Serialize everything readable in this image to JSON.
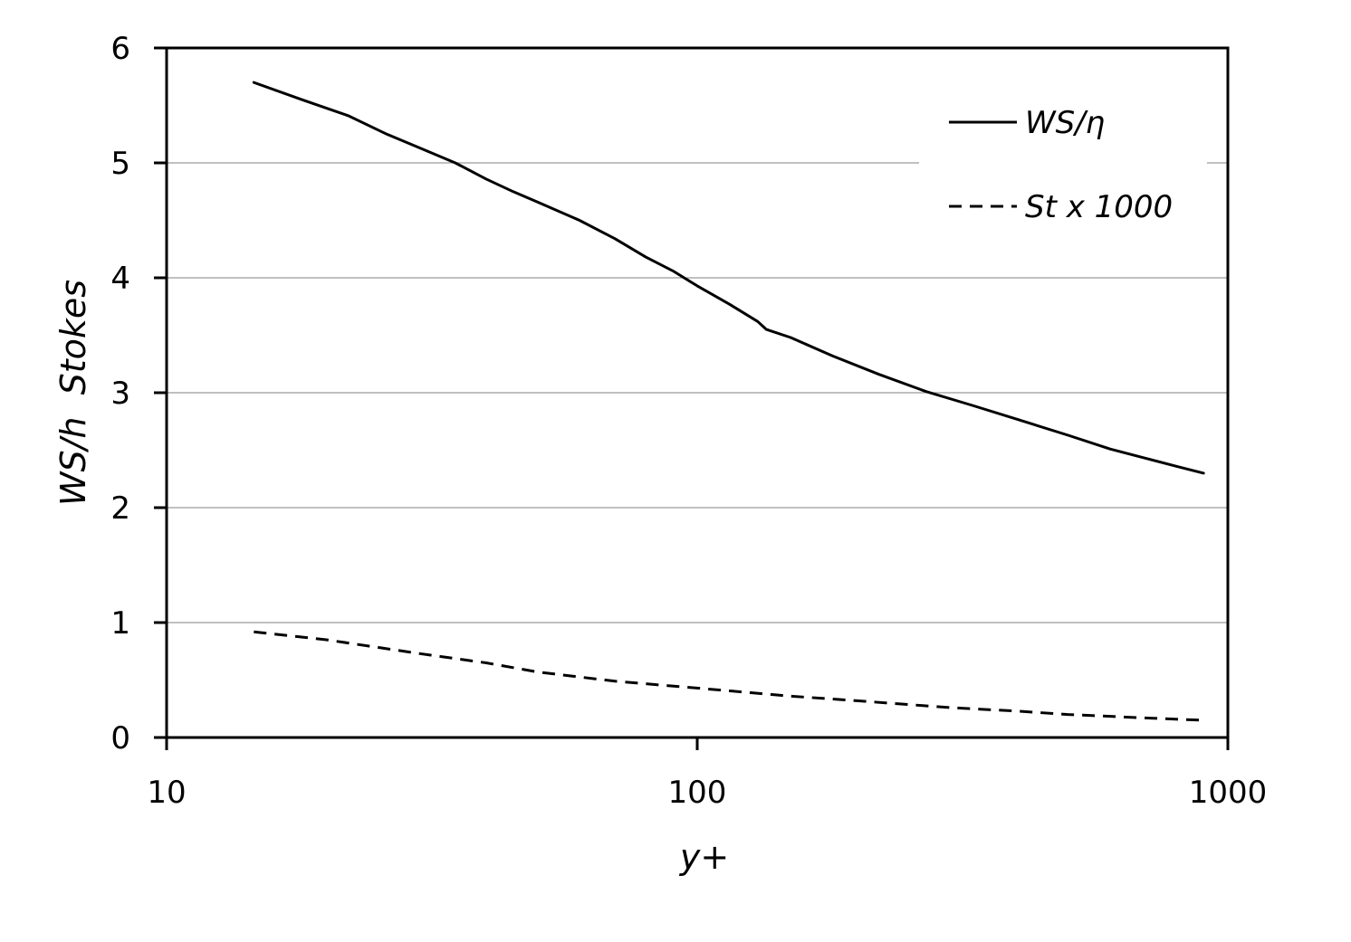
{
  "chart_data": {
    "type": "line",
    "xscale": "log",
    "xlim": [
      10,
      1000
    ],
    "ylim": [
      0,
      6
    ],
    "xticks": [
      10,
      100,
      1000
    ],
    "xtick_labels": [
      "10",
      "100",
      "1000"
    ],
    "yticks": [
      0,
      1,
      2,
      3,
      4,
      5,
      6
    ],
    "ytick_labels": [
      "0",
      "1",
      "2",
      "3",
      "4",
      "5",
      "6"
    ],
    "xlabel": "y+",
    "ylabel": "WS/h  Stokes",
    "grid": "horizontal",
    "legend_position": "top-right",
    "series": [
      {
        "name": "WS/η",
        "style": "solid",
        "color": "#000000",
        "x": [
          14.6,
          18,
          22,
          26,
          30,
          35,
          40,
          45,
          50,
          60,
          70,
          80,
          90,
          100,
          115,
          130,
          135,
          150,
          180,
          220,
          270,
          330,
          400,
          500,
          600,
          700,
          800,
          900
        ],
        "y": [
          5.7,
          5.55,
          5.41,
          5.25,
          5.13,
          5.0,
          4.86,
          4.75,
          4.66,
          4.5,
          4.34,
          4.18,
          4.06,
          3.93,
          3.77,
          3.62,
          3.55,
          3.48,
          3.32,
          3.16,
          3.01,
          2.89,
          2.77,
          2.63,
          2.51,
          2.43,
          2.36,
          2.3
        ]
      },
      {
        "name": "St x 1000",
        "style": "dashed",
        "color": "#000000",
        "x": [
          14.6,
          20,
          30,
          40,
          50,
          70,
          100,
          150,
          200,
          300,
          400,
          500,
          700,
          900
        ],
        "y": [
          0.92,
          0.85,
          0.73,
          0.65,
          0.57,
          0.49,
          0.43,
          0.36,
          0.32,
          0.26,
          0.23,
          0.2,
          0.17,
          0.15
        ]
      }
    ]
  }
}
